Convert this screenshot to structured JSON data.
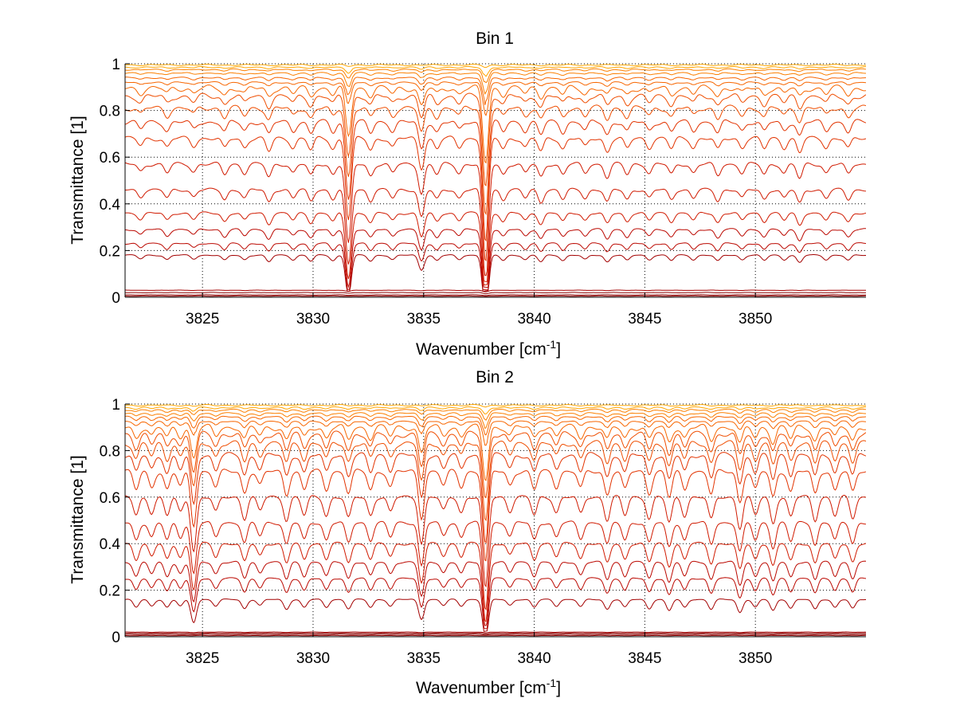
{
  "figure": {
    "background": "#ffffff",
    "grid_color": "#000000",
    "line_colors": [
      "#8b0000",
      "#a30000",
      "#bb0800",
      "#d01a00",
      "#e23300",
      "#ef4d00",
      "#f76600",
      "#fb7f00",
      "#ffa600",
      "#3ab0c8"
    ]
  },
  "chart_data": [
    {
      "type": "line",
      "title": "Bin 1",
      "xlabel": "Wavenumber [cm",
      "xlabel_sup": "-1",
      "xlabel_tail": "]",
      "ylabel": "Transmittance [1]",
      "xlim": [
        3821.5,
        3855
      ],
      "ylim": [
        0,
        1
      ],
      "xticks": [
        3825,
        3830,
        3835,
        3840,
        3845,
        3850
      ],
      "yticks": [
        0,
        0.2,
        0.4,
        0.6,
        0.8,
        1
      ],
      "ytick_labels": [
        "0",
        "0.2",
        "0.4",
        "0.6",
        "0.8",
        "1"
      ],
      "grid": true,
      "legend": "none",
      "line_profile": {
        "comment_free": true,
        "absorption_lines": [
          [
            3822.2,
            0.05
          ],
          [
            3823.4,
            0.06
          ],
          [
            3824.6,
            0.05
          ],
          [
            3826.0,
            0.07
          ],
          [
            3826.9,
            0.06
          ],
          [
            3828.0,
            0.09
          ],
          [
            3829.1,
            0.06
          ],
          [
            3829.9,
            0.08
          ],
          [
            3830.9,
            0.07
          ],
          [
            3831.6,
            0.55
          ],
          [
            3832.6,
            0.08
          ],
          [
            3833.6,
            0.06
          ],
          [
            3834.9,
            0.2
          ],
          [
            3835.6,
            0.07
          ],
          [
            3836.6,
            0.06
          ],
          [
            3837.8,
            0.85
          ],
          [
            3838.6,
            0.07
          ],
          [
            3839.6,
            0.06
          ],
          [
            3840.3,
            0.09
          ],
          [
            3841.3,
            0.07
          ],
          [
            3842.3,
            0.06
          ],
          [
            3843.3,
            0.09
          ],
          [
            3844.2,
            0.07
          ],
          [
            3845.2,
            0.06
          ],
          [
            3846.2,
            0.07
          ],
          [
            3847.2,
            0.06
          ],
          [
            3848.3,
            0.08
          ],
          [
            3849.4,
            0.06
          ],
          [
            3850.4,
            0.07
          ],
          [
            3851.3,
            0.06
          ],
          [
            3852.0,
            0.1
          ],
          [
            3853.2,
            0.06
          ],
          [
            3854.2,
            0.07
          ]
        ]
      },
      "series": [
        {
          "base": 0.995,
          "depth": 0.01
        },
        {
          "base": 0.985,
          "depth": 0.04
        },
        {
          "base": 0.975,
          "depth": 0.06
        },
        {
          "base": 0.96,
          "depth": 0.09
        },
        {
          "base": 0.94,
          "depth": 0.12
        },
        {
          "base": 0.92,
          "depth": 0.15
        },
        {
          "base": 0.895,
          "depth": 0.19
        },
        {
          "base": 0.86,
          "depth": 0.24
        },
        {
          "base": 0.81,
          "depth": 0.3
        },
        {
          "base": 0.75,
          "depth": 0.36
        },
        {
          "base": 0.68,
          "depth": 0.42
        },
        {
          "base": 0.57,
          "depth": 0.5
        },
        {
          "base": 0.46,
          "depth": 0.58
        },
        {
          "base": 0.36,
          "depth": 0.64
        },
        {
          "base": 0.29,
          "depth": 0.7
        },
        {
          "base": 0.23,
          "depth": 0.76
        },
        {
          "base": 0.18,
          "depth": 0.8
        },
        {
          "base": 0.03,
          "depth": 0.5
        },
        {
          "base": 0.02,
          "depth": 0.5
        },
        {
          "base": 0.01,
          "depth": 0.5
        },
        {
          "base": 0.005,
          "depth": 0.5
        }
      ]
    },
    {
      "type": "line",
      "title": "Bin 2",
      "xlabel": "Wavenumber [cm",
      "xlabel_sup": "-1",
      "xlabel_tail": "]",
      "ylabel": "Transmittance [1]",
      "xlim": [
        3821.5,
        3855
      ],
      "ylim": [
        0,
        1
      ],
      "xticks": [
        3825,
        3830,
        3835,
        3840,
        3845,
        3850
      ],
      "yticks": [
        0,
        0.2,
        0.4,
        0.6,
        0.8,
        1
      ],
      "ytick_labels": [
        "0",
        "0.2",
        "0.4",
        "0.6",
        "0.8",
        "1"
      ],
      "grid": true,
      "legend": "none",
      "line_profile": {
        "absorption_lines": [
          [
            3822.0,
            0.12
          ],
          [
            3822.7,
            0.1
          ],
          [
            3823.4,
            0.12
          ],
          [
            3824.0,
            0.1
          ],
          [
            3824.6,
            0.35
          ],
          [
            3825.6,
            0.1
          ],
          [
            3826.9,
            0.14
          ],
          [
            3827.6,
            0.09
          ],
          [
            3828.8,
            0.15
          ],
          [
            3829.6,
            0.12
          ],
          [
            3830.6,
            0.12
          ],
          [
            3831.6,
            0.14
          ],
          [
            3832.6,
            0.12
          ],
          [
            3833.5,
            0.1
          ],
          [
            3834.9,
            0.3
          ],
          [
            3835.9,
            0.09
          ],
          [
            3836.7,
            0.1
          ],
          [
            3837.8,
            0.6
          ],
          [
            3838.9,
            0.09
          ],
          [
            3840.0,
            0.12
          ],
          [
            3841.0,
            0.1
          ],
          [
            3842.1,
            0.11
          ],
          [
            3843.3,
            0.15
          ],
          [
            3844.1,
            0.12
          ],
          [
            3845.2,
            0.14
          ],
          [
            3846.1,
            0.17
          ],
          [
            3846.8,
            0.12
          ],
          [
            3848.0,
            0.15
          ],
          [
            3849.3,
            0.2
          ],
          [
            3850.0,
            0.12
          ],
          [
            3850.8,
            0.17
          ],
          [
            3851.6,
            0.13
          ],
          [
            3852.7,
            0.15
          ],
          [
            3853.6,
            0.12
          ],
          [
            3854.4,
            0.14
          ]
        ]
      },
      "series": [
        {
          "base": 0.995,
          "depth": 0.01
        },
        {
          "base": 0.985,
          "depth": 0.04
        },
        {
          "base": 0.975,
          "depth": 0.06
        },
        {
          "base": 0.96,
          "depth": 0.09
        },
        {
          "base": 0.945,
          "depth": 0.12
        },
        {
          "base": 0.925,
          "depth": 0.15
        },
        {
          "base": 0.9,
          "depth": 0.19
        },
        {
          "base": 0.87,
          "depth": 0.24
        },
        {
          "base": 0.83,
          "depth": 0.3
        },
        {
          "base": 0.78,
          "depth": 0.36
        },
        {
          "base": 0.71,
          "depth": 0.42
        },
        {
          "base": 0.6,
          "depth": 0.5
        },
        {
          "base": 0.49,
          "depth": 0.58
        },
        {
          "base": 0.4,
          "depth": 0.64
        },
        {
          "base": 0.32,
          "depth": 0.7
        },
        {
          "base": 0.25,
          "depth": 0.76
        },
        {
          "base": 0.16,
          "depth": 0.8
        },
        {
          "base": 0.02,
          "depth": 0.5
        },
        {
          "base": 0.015,
          "depth": 0.5
        },
        {
          "base": 0.01,
          "depth": 0.5
        },
        {
          "base": 0.005,
          "depth": 0.5
        }
      ]
    }
  ]
}
